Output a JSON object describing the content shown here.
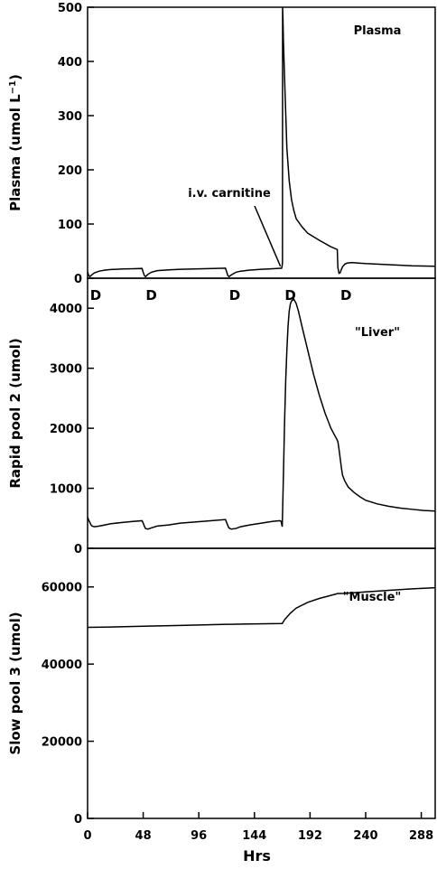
{
  "figure": {
    "xlabel": "Hrs",
    "x_ticks": [
      0,
      48,
      96,
      144,
      192,
      240,
      288
    ],
    "xlim": [
      0,
      300
    ]
  },
  "chart_data": [
    {
      "type": "line",
      "title": "Plasma",
      "ylabel": "Plasma (umol L⁻¹)",
      "ylabel_main": "Plasma (umol L",
      "ylabel_sup": "−1",
      "ylabel_end": ")",
      "ylim": [
        0,
        500
      ],
      "y_ticks": [
        0,
        100,
        200,
        300,
        400,
        500
      ],
      "annotation": {
        "text": "i.v. carnitine",
        "x": 168,
        "y": 500
      },
      "dose_label": "D",
      "dose_times": [
        0,
        48,
        120,
        168,
        216
      ],
      "series": [
        {
          "x": [
            0,
            1,
            2,
            4,
            6,
            10,
            15,
            20,
            30,
            40,
            47,
            48,
            49,
            50,
            52,
            55,
            60,
            70,
            80,
            100,
            119,
            120,
            121,
            122,
            124,
            128,
            132,
            140,
            150,
            160,
            167.5,
            168,
            168.2,
            168.3,
            168.6,
            169,
            170,
            172,
            174,
            176,
            178,
            180,
            185,
            190,
            200,
            210,
            215.5,
            216,
            217,
            218,
            219,
            220,
            222,
            224,
            228,
            234,
            240,
            250,
            260,
            270,
            280,
            290,
            300
          ],
          "y": [
            12,
            5,
            3,
            7,
            10,
            13,
            15,
            16,
            17,
            17.5,
            18,
            11,
            5,
            3,
            7,
            11,
            14,
            15.5,
            16.5,
            17.5,
            18.5,
            12,
            5,
            3,
            6,
            11,
            13,
            15,
            16.5,
            17.5,
            18.5,
            24,
            30,
            500,
            480,
            440,
            370,
            240,
            180,
            145,
            125,
            110,
            95,
            83,
            70,
            58,
            53,
            20,
            9,
            10,
            16,
            21,
            26,
            28,
            29,
            28,
            27,
            26,
            25,
            24,
            23,
            22.5,
            22
          ]
        }
      ]
    },
    {
      "type": "line",
      "title": "\"Liver\"",
      "ylabel": "Rapid pool 2 (umol)",
      "ylim": [
        0,
        4500
      ],
      "y_ticks": [
        0,
        1000,
        2000,
        3000,
        4000
      ],
      "series": [
        {
          "x": [
            0,
            1,
            2,
            3,
            4,
            6,
            10,
            15,
            20,
            30,
            40,
            47,
            48,
            49,
            50,
            52,
            55,
            60,
            70,
            80,
            100,
            119,
            120,
            121,
            122,
            124,
            128,
            132,
            140,
            150,
            160,
            166,
            167,
            168,
            169,
            170,
            171,
            172,
            173,
            174,
            175,
            176,
            178,
            180,
            182,
            185,
            190,
            195,
            200,
            205,
            210,
            215,
            216,
            217,
            218,
            219,
            220,
            222,
            225,
            230,
            235,
            240,
            250,
            260,
            270,
            280,
            290,
            300
          ],
          "y": [
            520,
            470,
            430,
            390,
            370,
            360,
            370,
            390,
            410,
            430,
            450,
            460,
            420,
            370,
            330,
            320,
            340,
            370,
            390,
            420,
            450,
            480,
            430,
            380,
            340,
            320,
            330,
            360,
            390,
            420,
            450,
            460,
            450,
            360,
            1200,
            2100,
            2800,
            3300,
            3700,
            3950,
            4070,
            4120,
            4150,
            4080,
            3950,
            3700,
            3300,
            2900,
            2550,
            2250,
            2000,
            1820,
            1780,
            1650,
            1500,
            1350,
            1220,
            1120,
            1020,
            930,
            860,
            800,
            740,
            700,
            670,
            650,
            630,
            620
          ]
        }
      ]
    },
    {
      "type": "line",
      "title": "\"Muscle\"",
      "ylabel": "Slow pool 3 (umol)",
      "ylim": [
        0,
        70000
      ],
      "y_ticks": [
        0,
        20000,
        40000,
        60000
      ],
      "series": [
        {
          "x": [
            0,
            20,
            48,
            80,
            120,
            140,
            168,
            170,
            175,
            180,
            190,
            200,
            210,
            216,
            220,
            240,
            260,
            280,
            300
          ],
          "y": [
            49500,
            49600,
            49800,
            50000,
            50300,
            50400,
            50500,
            51500,
            53200,
            54500,
            56000,
            57000,
            57800,
            58300,
            58300,
            58700,
            59100,
            59500,
            59800
          ]
        }
      ]
    }
  ]
}
